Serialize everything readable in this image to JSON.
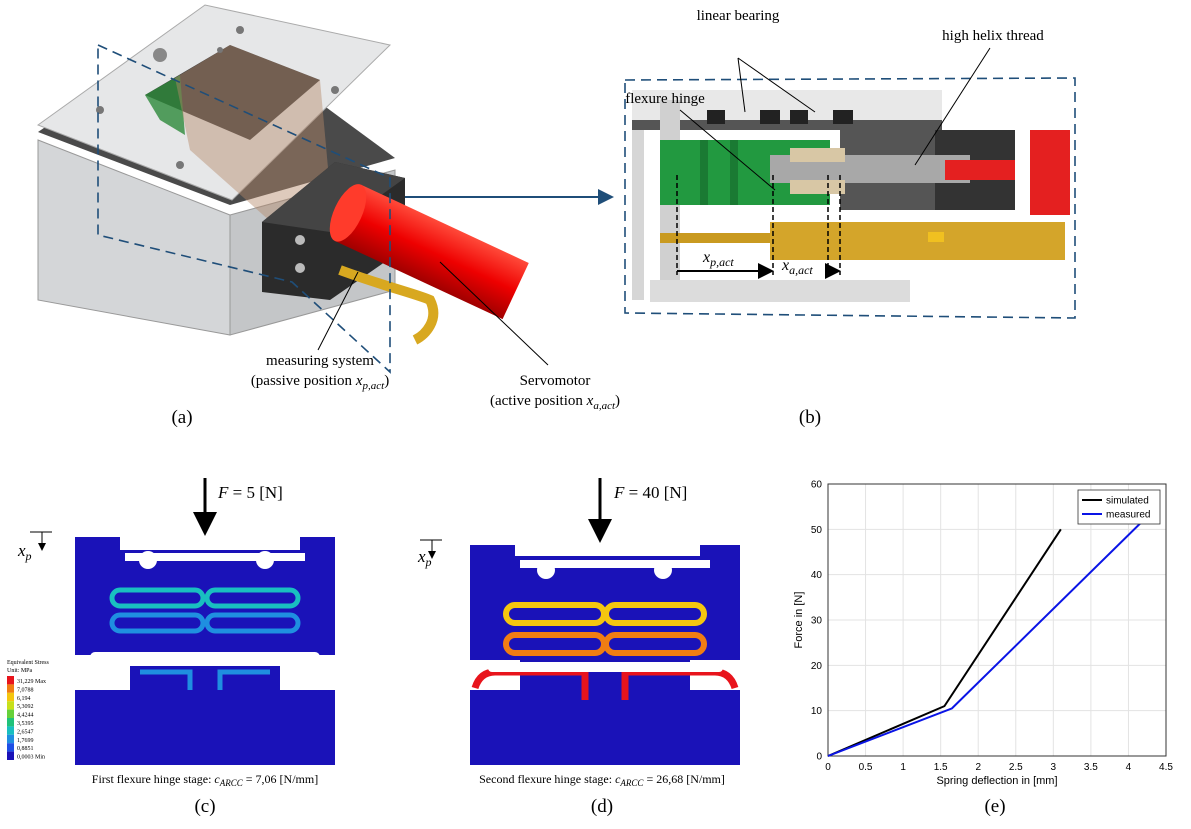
{
  "panel_a": {
    "label": "(a)",
    "measuring_system": "measuring system",
    "passive_position": "(passive position ",
    "passive_var": "x",
    "passive_sub": "p,act",
    "passive_close": ")",
    "servomotor": "Servomotor",
    "active_position": "(active position ",
    "active_var": "x",
    "active_sub": "a,act",
    "active_close": ")"
  },
  "panel_b": {
    "label": "(b)",
    "linear_bearing": "linear bearing",
    "high_helix_thread": "high helix thread",
    "flexure_hinge": "flexure hinge",
    "xp_var": "x",
    "xp_sub": "p,act",
    "xa_var": "x",
    "xa_sub": "a,act"
  },
  "panel_c": {
    "label": "(c)",
    "force_var": "F",
    "force_value": " =  5 [N]",
    "disp_var": "x",
    "disp_sub": "p",
    "caption_text": "First flexure hinge stage: ",
    "caption_var": "c",
    "caption_sub": "ARCC",
    "caption_value": " = 7,06 [N/mm]",
    "legend_title": "Equivalent Stress",
    "legend_unit": "Unit: MPa",
    "legend_levels": [
      {
        "label": "31,229 Max",
        "color": "#e8141c"
      },
      {
        "label": "7,0788",
        "color": "#f07d12"
      },
      {
        "label": "6,194",
        "color": "#f5c60f"
      },
      {
        "label": "5,3092",
        "color": "#c8e01b"
      },
      {
        "label": "4,4244",
        "color": "#66d13a"
      },
      {
        "label": "3,5395",
        "color": "#20c27a"
      },
      {
        "label": "2,6547",
        "color": "#19bfc0"
      },
      {
        "label": "1,7699",
        "color": "#1f8fe0"
      },
      {
        "label": "0,8851",
        "color": "#1d4fe6"
      },
      {
        "label": "0,0003 Min",
        "color": "#1a12b8"
      }
    ]
  },
  "panel_d": {
    "label": "(d)",
    "force_var": "F",
    "force_value": " = 40 [N]",
    "disp_var": "x",
    "disp_sub": "p",
    "caption_text": "Second flexure hinge stage: ",
    "caption_var": "c",
    "caption_sub": "ARCC",
    "caption_value": " = 26,68 [N/mm]"
  },
  "panel_e": {
    "label": "(e)"
  },
  "chart_data": {
    "type": "line",
    "xlabel": "Spring deflection in [mm]",
    "ylabel": "Force in [N]",
    "xlim": [
      0,
      4.5
    ],
    "ylim": [
      0,
      60
    ],
    "xticks": [
      0,
      0.5,
      1,
      1.5,
      2,
      2.5,
      3,
      3.5,
      4,
      4.5
    ],
    "yticks": [
      0,
      10,
      20,
      30,
      40,
      50,
      60
    ],
    "grid": true,
    "legend": "northeast",
    "series": [
      {
        "name": "simulated",
        "color": "#000000",
        "x": [
          0,
          1.55,
          3.1
        ],
        "values": [
          0,
          11,
          50
        ]
      },
      {
        "name": "measured",
        "color": "#0a14e6",
        "x": [
          0,
          1.65,
          4.2
        ],
        "values": [
          0,
          10.5,
          52
        ]
      }
    ]
  }
}
